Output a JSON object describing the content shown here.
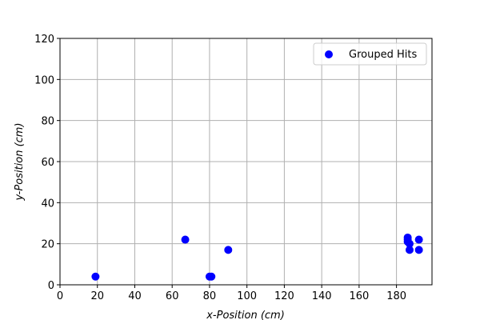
{
  "chart_data": {
    "type": "scatter",
    "xlabel": "x-Position (cm)",
    "ylabel": "y-Position (cm)",
    "xlim": [
      0,
      199
    ],
    "ylim": [
      0,
      120
    ],
    "xticks": [
      0,
      20,
      40,
      60,
      80,
      100,
      120,
      140,
      160,
      180
    ],
    "yticks": [
      0,
      20,
      40,
      60,
      80,
      100,
      120
    ],
    "grid": true,
    "legend_position": "top-right",
    "series": [
      {
        "name": "Grouped Hits",
        "color": "#0000ff",
        "marker": "circle",
        "points": [
          {
            "x": 19,
            "y": 4
          },
          {
            "x": 67,
            "y": 22
          },
          {
            "x": 80,
            "y": 4
          },
          {
            "x": 81,
            "y": 4
          },
          {
            "x": 90,
            "y": 17
          },
          {
            "x": 186,
            "y": 22
          },
          {
            "x": 186,
            "y": 23
          },
          {
            "x": 186,
            "y": 21
          },
          {
            "x": 187,
            "y": 20
          },
          {
            "x": 187,
            "y": 17
          },
          {
            "x": 192,
            "y": 22
          },
          {
            "x": 192,
            "y": 17
          }
        ]
      }
    ]
  }
}
